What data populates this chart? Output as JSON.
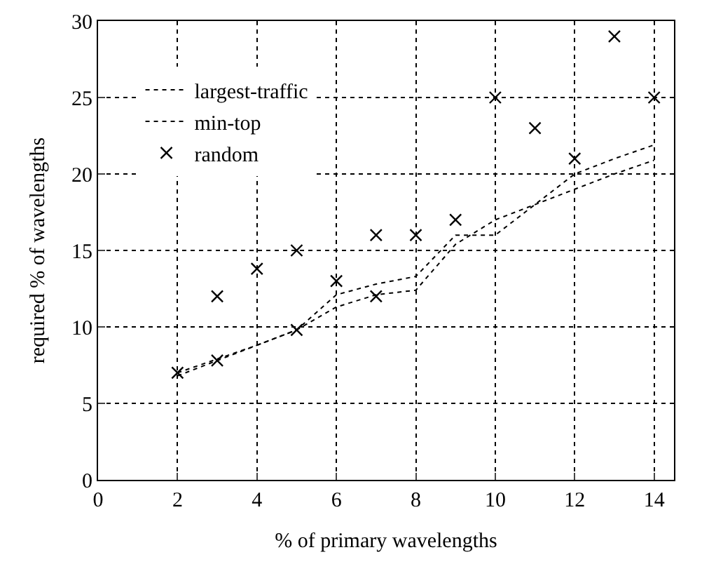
{
  "chart_data": {
    "type": "line",
    "xlabel": "% of primary wavelengths",
    "ylabel": "required % of wavelengths",
    "xlim": [
      0,
      14.5
    ],
    "xticks": [
      0,
      2,
      4,
      6,
      8,
      10,
      12,
      14
    ],
    "ylim": [
      0,
      30
    ],
    "yticks": [
      0,
      5,
      10,
      15,
      20,
      25,
      30
    ],
    "grid": true,
    "legend": "top left",
    "line_style": "dotted",
    "series": [
      {
        "name": "largest-traffic",
        "color": "#000000",
        "marker": "none",
        "x": [
          2,
          3,
          4,
          5,
          6,
          7,
          8,
          9,
          10,
          11,
          12,
          13,
          14
        ],
        "values": [
          6.8,
          7.8,
          8.8,
          9.8,
          12.1,
          12.8,
          13.3,
          16,
          16,
          18,
          20,
          21,
          21.9
        ]
      },
      {
        "name": "min-top",
        "color": "#000000",
        "marker": "none",
        "x": [
          2,
          3,
          4,
          5,
          6,
          7,
          8,
          9,
          10,
          11,
          12,
          13,
          14
        ],
        "values": [
          7,
          7.9,
          8.8,
          9.8,
          11.3,
          12.1,
          12.4,
          15.4,
          17,
          18,
          19,
          20,
          20.9
        ]
      },
      {
        "name": "random",
        "color": "#000000",
        "type": "scatter",
        "marker": "cross",
        "x": [
          2,
          3,
          3,
          4,
          5,
          5,
          6,
          7,
          7,
          8,
          9,
          10,
          11,
          12,
          13,
          14
        ],
        "values": [
          7,
          12,
          7.8,
          13.8,
          15,
          9.8,
          13,
          16,
          12,
          16,
          17,
          25,
          23,
          21,
          29,
          25
        ]
      }
    ]
  }
}
